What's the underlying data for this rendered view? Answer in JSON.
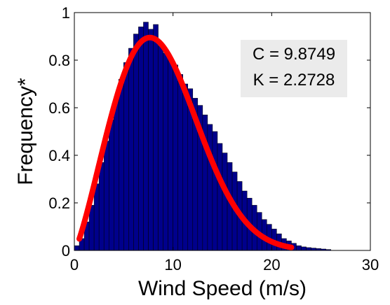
{
  "chart_data": {
    "type": "bar",
    "xlabel": "Wind Speed (m/s)",
    "ylabel": "Frequency*",
    "xlim": [
      0,
      30
    ],
    "ylim": [
      0,
      1
    ],
    "xticks": [
      0,
      10,
      20,
      30
    ],
    "yticks": [
      0,
      0.2,
      0.4,
      0.6,
      0.8,
      1
    ],
    "ytick_labels": [
      "0",
      "0.2",
      "0.4",
      "0.6",
      "0.8",
      "1"
    ],
    "grid": false,
    "bin_width": 0.5,
    "bins_start": [
      0,
      0.5,
      1,
      1.5,
      2,
      2.5,
      3,
      3.5,
      4,
      4.5,
      5,
      5.5,
      6,
      6.5,
      7,
      7.5,
      8,
      8.5,
      9,
      9.5,
      10,
      10.5,
      11,
      11.5,
      12,
      12.5,
      13,
      13.5,
      14,
      14.5,
      15,
      15.5,
      16,
      16.5,
      17,
      17.5,
      18,
      18.5,
      19,
      19.5,
      20,
      20.5,
      21,
      21.5,
      22,
      22.5,
      23,
      23.5,
      24,
      24.5,
      25,
      25.5
    ],
    "values": [
      0.02,
      0.05,
      0.12,
      0.19,
      0.28,
      0.37,
      0.46,
      0.55,
      0.64,
      0.72,
      0.79,
      0.85,
      0.91,
      0.94,
      0.96,
      0.93,
      0.95,
      0.86,
      0.83,
      0.81,
      0.78,
      0.74,
      0.7,
      0.68,
      0.64,
      0.61,
      0.57,
      0.53,
      0.5,
      0.45,
      0.41,
      0.37,
      0.33,
      0.29,
      0.25,
      0.22,
      0.19,
      0.16,
      0.13,
      0.11,
      0.09,
      0.07,
      0.05,
      0.04,
      0.03,
      0.02,
      0.015,
      0.012,
      0.01,
      0.008,
      0.006,
      0.004
    ],
    "bar_color": "#00008b",
    "bar_edge_color": "#000000",
    "fit": {
      "type": "line",
      "distribution": "weibull",
      "color": "#ff0000",
      "x_range": [
        0.5,
        22
      ],
      "peak_value": 0.895,
      "params": {
        "C": 9.8749,
        "K": 2.2728
      }
    },
    "annotation_lines": [
      "C = 9.8749",
      "K = 2.2728"
    ],
    "annotation_placement": "top-right",
    "annotation_background": "#ebebeb"
  }
}
